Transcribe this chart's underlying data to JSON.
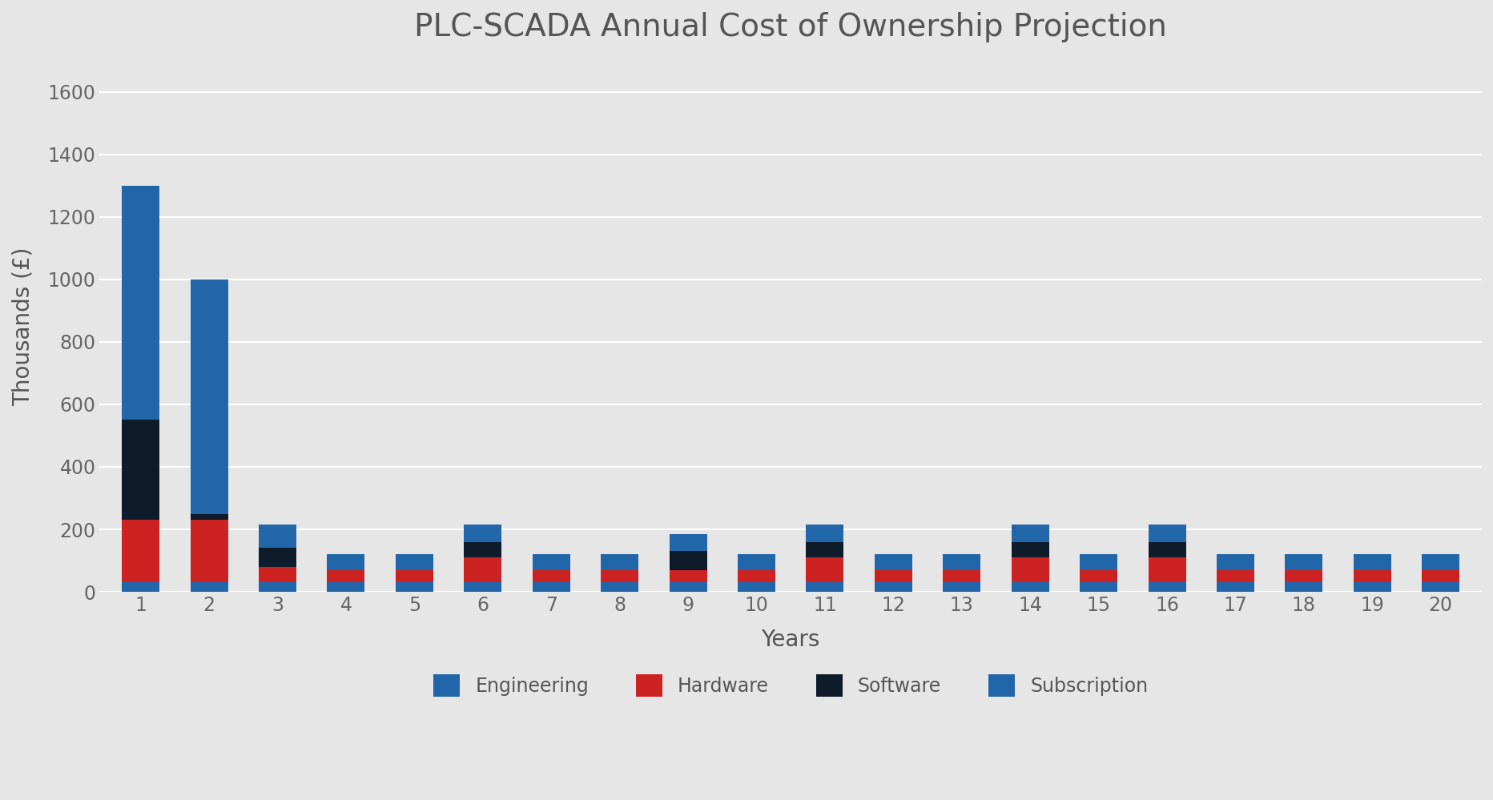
{
  "title": "PLC-SCADA Annual Cost of Ownership Projection",
  "xlabel": "Years",
  "ylabel": "Thousands (£)",
  "years": [
    1,
    2,
    3,
    4,
    5,
    6,
    7,
    8,
    9,
    10,
    11,
    12,
    13,
    14,
    15,
    16,
    17,
    18,
    19,
    20
  ],
  "subscription": [
    30,
    30,
    30,
    30,
    30,
    30,
    30,
    30,
    30,
    30,
    30,
    30,
    30,
    30,
    30,
    30,
    30,
    30,
    30,
    30
  ],
  "hardware": [
    200,
    200,
    50,
    40,
    40,
    80,
    40,
    40,
    40,
    40,
    80,
    40,
    40,
    80,
    40,
    80,
    40,
    40,
    40,
    40
  ],
  "software": [
    320,
    20,
    60,
    0,
    0,
    50,
    0,
    0,
    60,
    0,
    50,
    0,
    0,
    50,
    0,
    50,
    0,
    0,
    0,
    0
  ],
  "engineering": [
    750,
    750,
    75,
    50,
    50,
    55,
    50,
    50,
    55,
    50,
    55,
    50,
    50,
    55,
    50,
    55,
    50,
    50,
    50,
    50
  ],
  "color_subscription": "#2266AA",
  "color_hardware": "#CC2222",
  "color_software": "#0D1B2A",
  "color_engineering": "#2266AA",
  "background_color": "#E6E6E6",
  "plot_bg_color": "#E6E6E6",
  "ylim": [
    0,
    1700
  ],
  "yticks": [
    0,
    200,
    400,
    600,
    800,
    1000,
    1200,
    1400,
    1600
  ],
  "title_fontsize": 28,
  "axis_label_fontsize": 20,
  "tick_fontsize": 17,
  "legend_fontsize": 17
}
